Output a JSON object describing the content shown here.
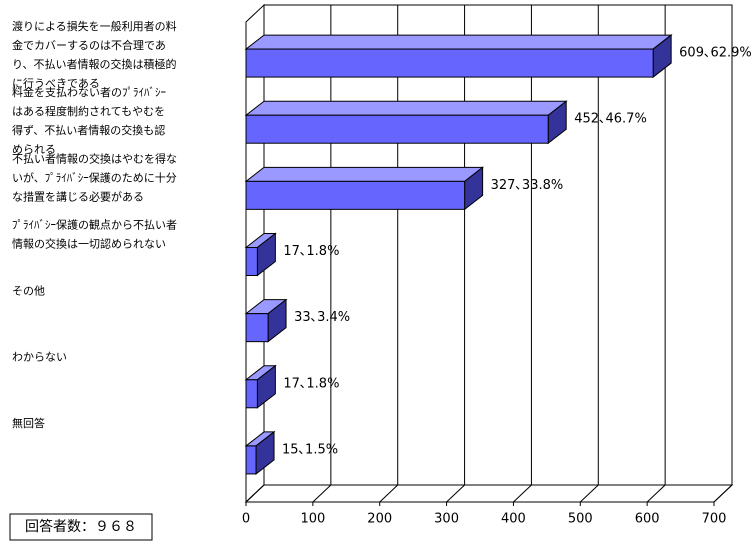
{
  "chart_data": {
    "type": "bar3d-horizontal",
    "categories": [
      [
        "渡りによる損失を一般利用者の料",
        "金でカバーするのは不合理であ",
        "り、不払い者情報の交換は積極的",
        "に行うべきである"
      ],
      [
        "料金を支払わない者のﾌﾟﾗｲﾊﾞｼｰ",
        "はある程度制約されてもやむを",
        "得ず、不払い者情報の交換も認",
        "められる"
      ],
      [
        "不払い者情報の交換はやむを得な",
        "いが、ﾌﾟﾗｲﾊﾞｼｰ保護のために十分",
        "な措置を講じる必要がある"
      ],
      [
        "ﾌﾟﾗｲﾊﾞｼｰ保護の観点から不払い者",
        "情報の交換は一切認められない"
      ],
      [
        "その他"
      ],
      [
        "わからない"
      ],
      [
        "無回答"
      ]
    ],
    "values": [
      609,
      452,
      327,
      17,
      33,
      17,
      15
    ],
    "value_labels": [
      "609､62.9%",
      "452､46.7%",
      "327､33.8%",
      "17､1.8%",
      "33､3.4%",
      "17､1.8%",
      "15､1.5%"
    ],
    "color": "#6666ff",
    "xlim": [
      0,
      700
    ],
    "xticks": [
      0,
      100,
      200,
      300,
      400,
      500,
      600,
      700
    ],
    "grid": true,
    "note": "回答者数：９６８"
  }
}
